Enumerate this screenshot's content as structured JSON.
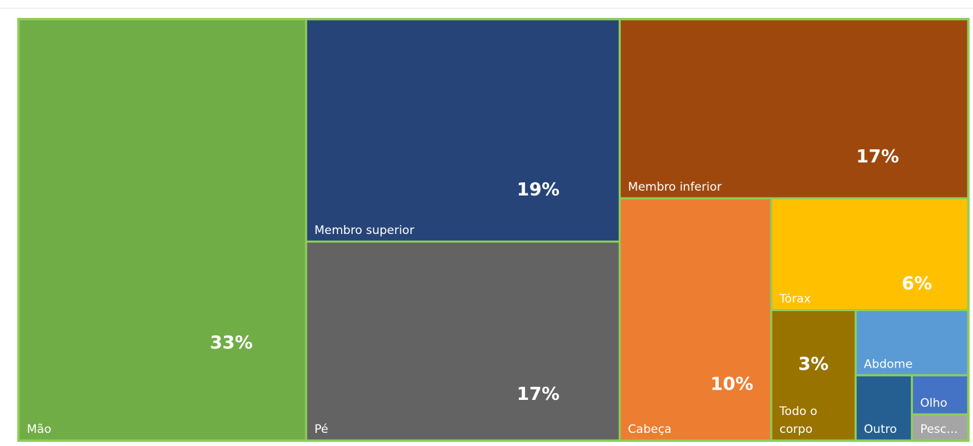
{
  "chart_data": {
    "type": "treemap",
    "categories": [
      "Mão",
      "Membro superior",
      "Pé",
      "Membro inferior",
      "Cabeça",
      "Tórax",
      "Todo o corpo",
      "Abdome",
      "Outro",
      "Olho",
      "Pesc..."
    ],
    "values": [
      33,
      19,
      17,
      17,
      10,
      6,
      3,
      2,
      1,
      0.6,
      0.4
    ],
    "value_labels": [
      "33%",
      "19%",
      "17%",
      "17%",
      "10%",
      "6%",
      "3%",
      null,
      null,
      null,
      null
    ],
    "colors": [
      "#70ad47",
      "#264478",
      "#636363",
      "#9e480e",
      "#ed7d31",
      "#ffc000",
      "#997300",
      "#5b9bd5",
      "#255e91",
      "#4472c4",
      "#a5a5a5"
    ]
  }
}
